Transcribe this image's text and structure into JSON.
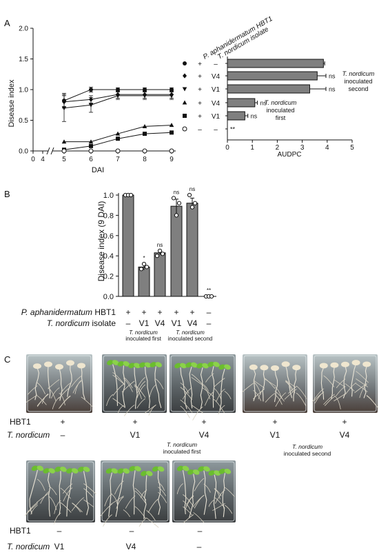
{
  "panel_labels": {
    "a": "A",
    "b": "B",
    "c": "C"
  },
  "chart_data": [
    {
      "type": "line",
      "panel": "A",
      "ylabel": "Disease index",
      "xlabel": "DAI",
      "x": [
        5,
        6,
        7,
        8,
        9
      ],
      "x_ticks": [
        "0",
        "4",
        "5",
        "6",
        "7",
        "8",
        "9"
      ],
      "y_ticks": [
        "0.0",
        "0.5",
        "1.0",
        "1.5",
        "2.0"
      ],
      "ylim": [
        0,
        2
      ],
      "series": [
        {
          "marker": "circle-filled",
          "values": [
            0.82,
            1.0,
            1.0,
            1.0,
            1.0
          ]
        },
        {
          "marker": "diamond",
          "values": [
            0.8,
            0.84,
            0.92,
            0.92,
            0.92
          ]
        },
        {
          "marker": "triangle-down",
          "values": [
            0.7,
            0.75,
            0.9,
            0.9,
            0.9
          ]
        },
        {
          "marker": "triangle-up",
          "values": [
            0.15,
            0.15,
            0.28,
            0.4,
            0.42
          ]
        },
        {
          "marker": "square",
          "values": [
            0.02,
            0.08,
            0.2,
            0.28,
            0.3
          ]
        },
        {
          "marker": "circle-open",
          "values": [
            0.0,
            0.0,
            0.0,
            0.0,
            0.0
          ]
        }
      ]
    },
    {
      "type": "bar",
      "panel": "A",
      "orientation": "horizontal",
      "xlabel": "AUDPC",
      "x_ticks": [
        "0",
        "1",
        "2",
        "3",
        "4",
        "5"
      ],
      "xlim": [
        0,
        5
      ],
      "col_headers": [
        "P. aphanidermatum HBT1",
        "T. nordicum isolate"
      ],
      "rows": [
        {
          "marker": "circle-filled",
          "pathogen": "+",
          "isolate": "–",
          "value": 3.85,
          "sig": ""
        },
        {
          "marker": "diamond",
          "pathogen": "+",
          "isolate": "V4",
          "value": 3.6,
          "sig": "ns"
        },
        {
          "marker": "triangle-down",
          "pathogen": "+",
          "isolate": "V1",
          "value": 3.3,
          "sig": "ns"
        },
        {
          "marker": "triangle-up",
          "pathogen": "+",
          "isolate": "V4",
          "value": 1.1,
          "sig": "ns"
        },
        {
          "marker": "square",
          "pathogen": "+",
          "isolate": "V1",
          "value": 0.7,
          "sig": "ns"
        },
        {
          "marker": "circle-open",
          "pathogen": "–",
          "isolate": "–",
          "value": 0.0,
          "sig": "**"
        }
      ],
      "annotations": {
        "second": [
          "T. nordicum",
          "inoculated",
          "second"
        ],
        "first": [
          "T. nordicum",
          "inoculated",
          "first"
        ]
      }
    },
    {
      "type": "bar",
      "panel": "B",
      "ylabel": "Disease index (9  DAI)",
      "ylim": [
        0,
        1.0
      ],
      "y_ticks": [
        "0.0",
        "0.2",
        "0.4",
        "0.6",
        "0.8",
        "1.0"
      ],
      "values": [
        1.0,
        0.29,
        0.43,
        0.89,
        0.92,
        0.0
      ],
      "points": [
        [
          1.0,
          1.0,
          1.0
        ],
        [
          0.27,
          0.32,
          0.29
        ],
        [
          0.4,
          0.45,
          0.42
        ],
        [
          0.97,
          0.8,
          0.92
        ],
        [
          1.0,
          0.88,
          0.92
        ],
        [
          0.0,
          0.0,
          0.0
        ]
      ],
      "sig": [
        "",
        "*",
        "ns",
        "ns",
        "ns",
        "**"
      ],
      "row1_label": "P. aphanidermatum",
      "row1_label_suffix": "HBT1",
      "row1": [
        "+",
        "+",
        "+",
        "+",
        "+",
        "–"
      ],
      "row2_label": "T. nordicum",
      "row2_label_suffix": "isolate",
      "row2": [
        "–",
        "V1",
        "V4",
        "V1",
        "V4",
        "–"
      ],
      "group_first": [
        "T. nordicum",
        "inoculated first"
      ],
      "group_second": [
        "T. nordicum",
        "inoculated second"
      ]
    }
  ],
  "panel_c": {
    "row1_labels": [
      "HBT1",
      "T. nordicum"
    ],
    "row1_hbt1": [
      "+",
      "+",
      "+",
      "+",
      "+"
    ],
    "row1_tn": [
      "–",
      "V1",
      "V4",
      "V1",
      "V4"
    ],
    "row1_group_first": [
      "T. nordicum",
      "inoculated first"
    ],
    "row1_group_second": [
      "T. nordicum",
      "inoculated second"
    ],
    "row2_hbt1": [
      "–",
      "–",
      "–"
    ],
    "row2_tn": [
      "V1",
      "V4",
      "–"
    ]
  }
}
